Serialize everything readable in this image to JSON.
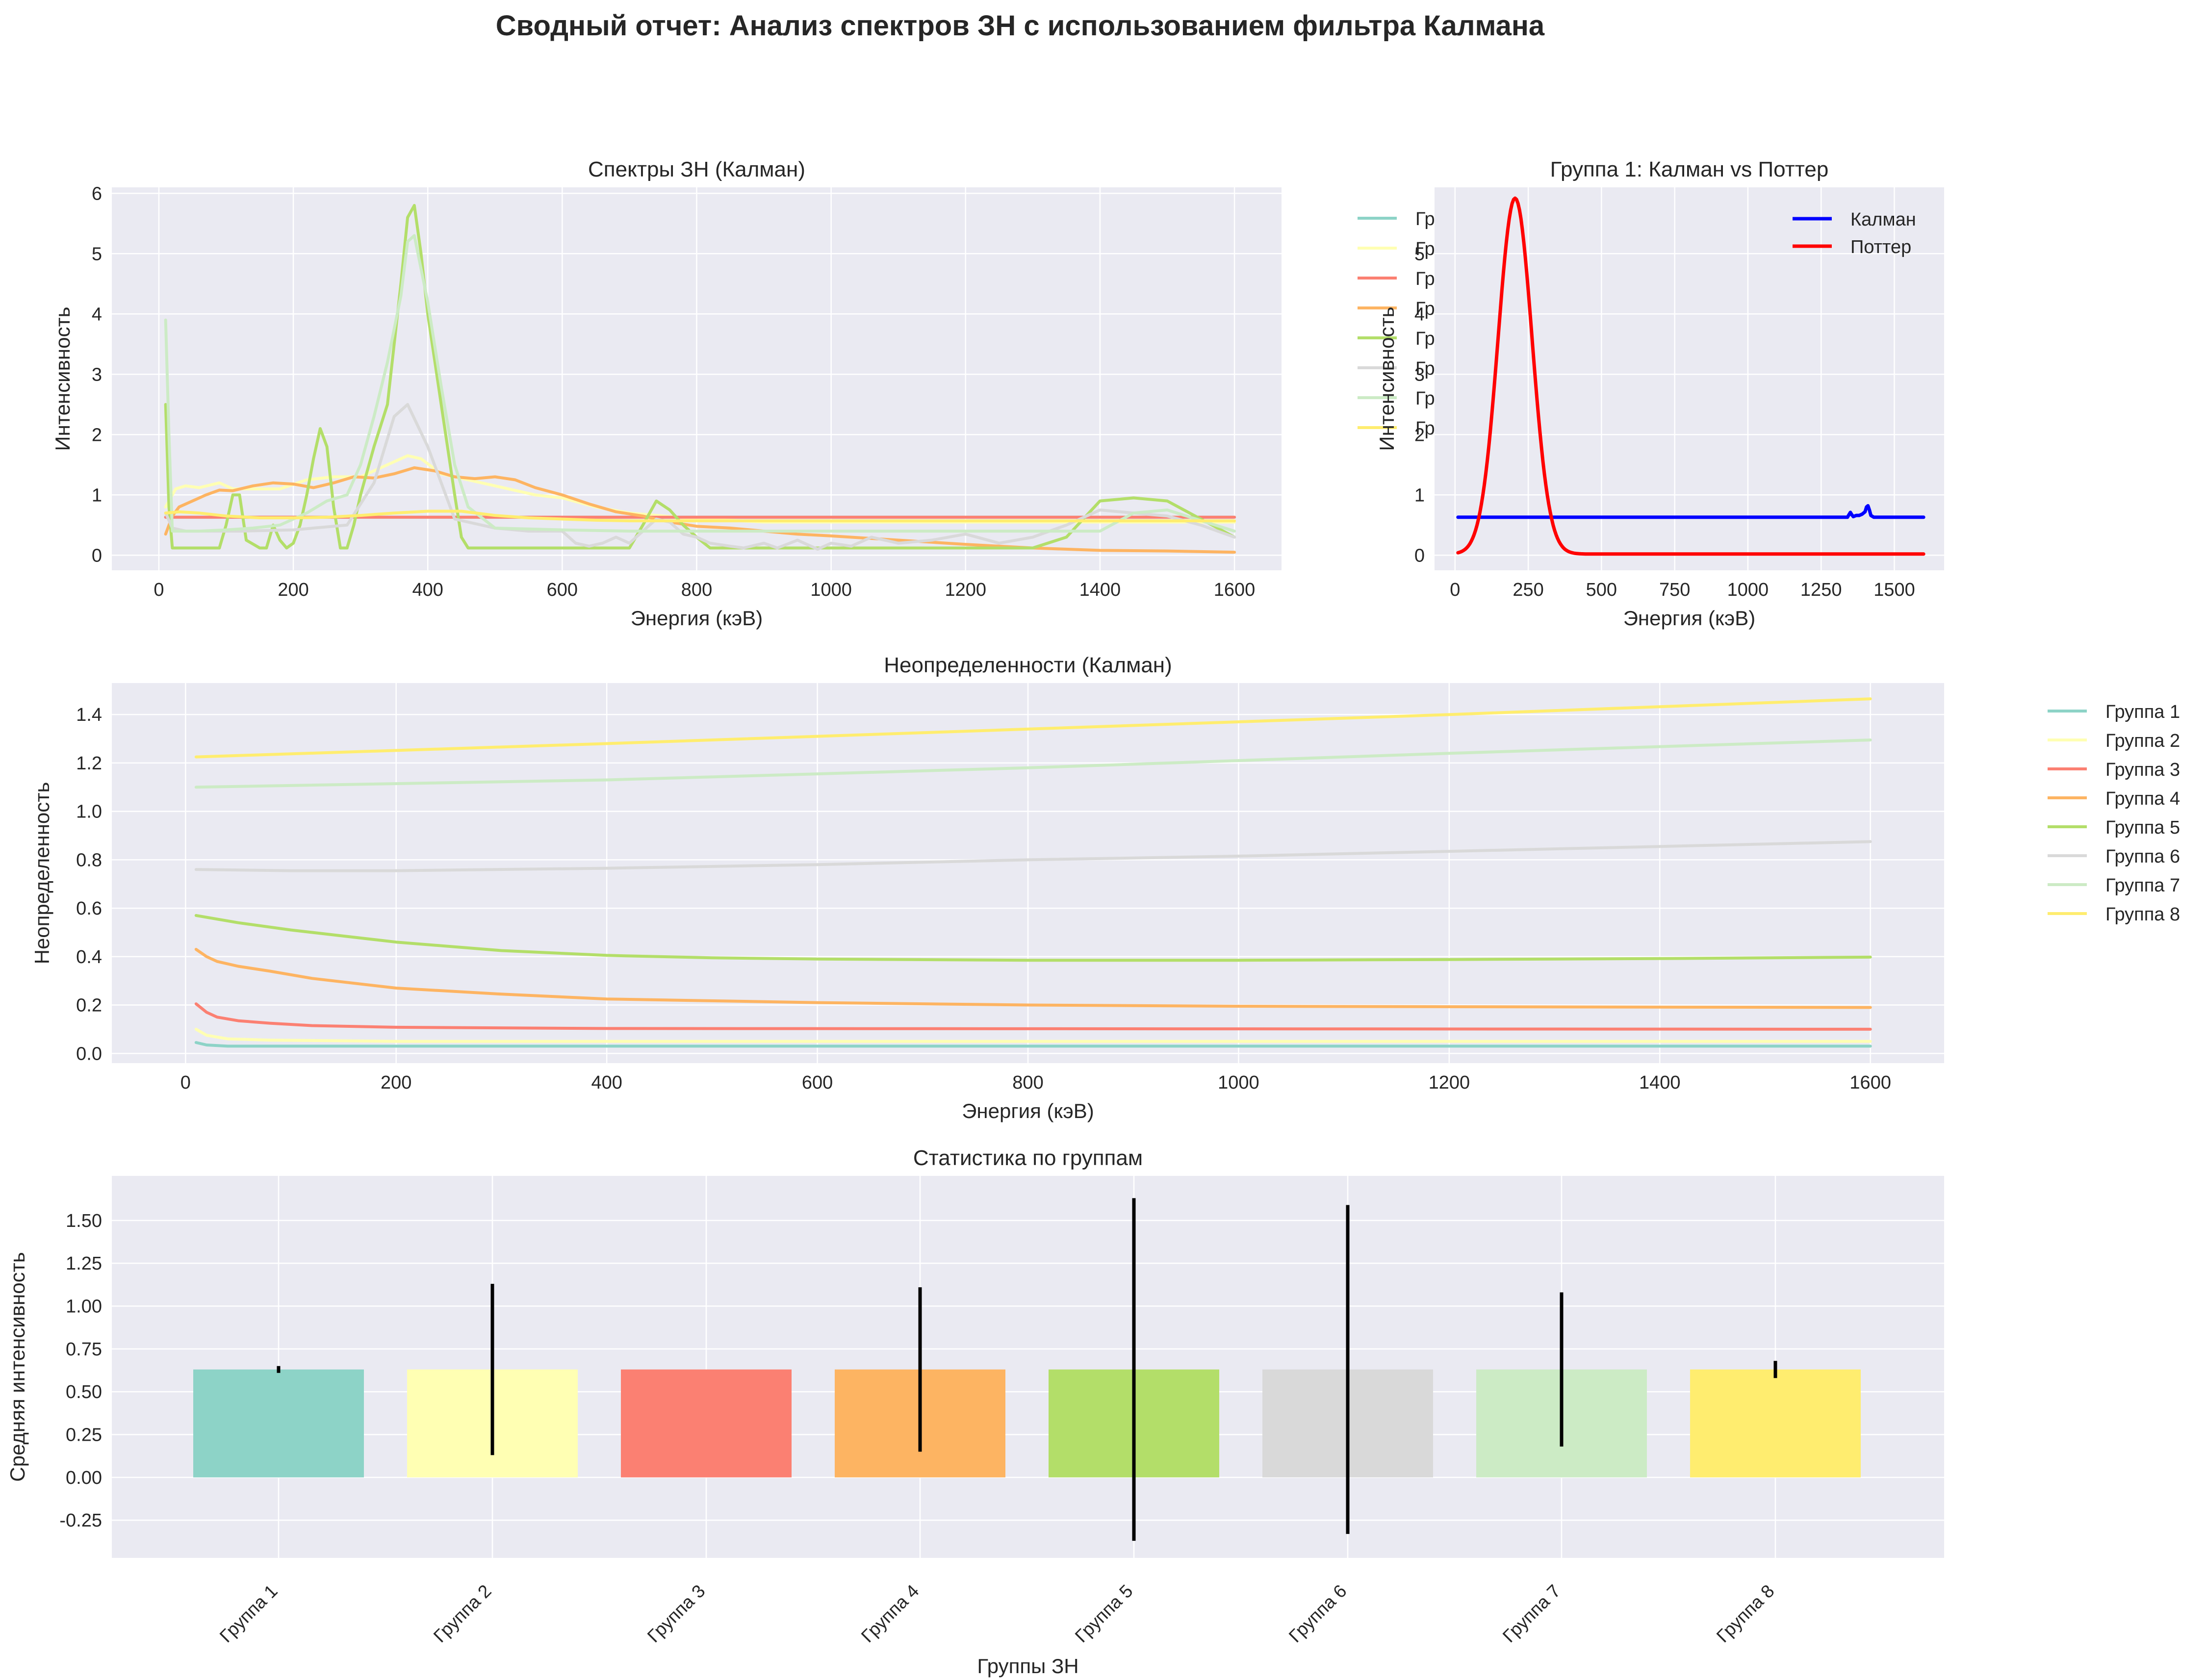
{
  "suptitle": "Сводный отчет: Анализ спектров ЗН с использованием фильтра Калмана",
  "colors": {
    "background": "#ffffff",
    "axes_bg": "#eaeaf2",
    "grid": "#ffffff",
    "text": "#262626",
    "kalman": "#0000ff",
    "potter": "#ff0000",
    "errorbar": "#000000",
    "groups": [
      "#8dd3c7",
      "#ffffb3",
      "#fb8072",
      "#fdb462",
      "#b3de69",
      "#d9d9d9",
      "#ccebc5",
      "#ffed6f"
    ]
  },
  "chart_data": [
    {
      "id": "spectra",
      "type": "line",
      "title": "Спектры ЗН (Калман)",
      "xlabel": "Энергия (кэВ)",
      "ylabel": "Интенсивность",
      "xlim": [
        -70,
        1670
      ],
      "ylim": [
        -0.25,
        6.1
      ],
      "xticks": [
        0,
        200,
        400,
        600,
        800,
        1000,
        1200,
        1400,
        1600
      ],
      "yticks": [
        0,
        1,
        2,
        3,
        4,
        5,
        6
      ],
      "grid": true,
      "legend": {
        "placement": "outside-right",
        "labels": [
          "Гр",
          "Гр",
          "Гр",
          "Гр",
          "Гр",
          "Гр",
          "Гр",
          "Гр"
        ]
      },
      "series": [
        {
          "name": "Группа 1",
          "color_index": 0,
          "x": [
            10,
            1600
          ],
          "y": [
            0.63,
            0.63
          ]
        },
        {
          "name": "Группа 2",
          "color_index": 1,
          "x": [
            10,
            25,
            40,
            60,
            90,
            110,
            140,
            180,
            220,
            260,
            300,
            340,
            370,
            390,
            420,
            460,
            500,
            560,
            600,
            650,
            700,
            750,
            800,
            850,
            900,
            950,
            1000,
            1050,
            1100,
            1200,
            1300,
            1400,
            1500,
            1600
          ],
          "y": [
            0.8,
            1.1,
            1.15,
            1.12,
            1.2,
            1.1,
            1.1,
            1.1,
            1.25,
            1.3,
            1.3,
            1.5,
            1.65,
            1.6,
            1.35,
            1.25,
            1.15,
            1.0,
            0.95,
            0.8,
            0.7,
            0.65,
            0.6,
            0.58,
            0.55,
            0.55,
            0.55,
            0.55,
            0.55,
            0.55,
            0.55,
            0.55,
            0.55,
            0.55
          ]
        },
        {
          "name": "Группа 3",
          "color_index": 2,
          "x": [
            10,
            1600
          ],
          "y": [
            0.63,
            0.63
          ]
        },
        {
          "name": "Группа 4",
          "color_index": 3,
          "x": [
            10,
            20,
            30,
            50,
            70,
            90,
            110,
            140,
            170,
            200,
            230,
            260,
            290,
            320,
            350,
            380,
            410,
            440,
            470,
            500,
            530,
            560,
            600,
            640,
            680,
            720,
            760,
            800,
            850,
            900,
            950,
            1000,
            1100,
            1200,
            1300,
            1400,
            1500,
            1600
          ],
          "y": [
            0.35,
            0.65,
            0.8,
            0.9,
            1.0,
            1.08,
            1.07,
            1.15,
            1.2,
            1.18,
            1.12,
            1.2,
            1.3,
            1.28,
            1.35,
            1.45,
            1.4,
            1.3,
            1.27,
            1.3,
            1.25,
            1.12,
            1.0,
            0.85,
            0.72,
            0.65,
            0.55,
            0.48,
            0.45,
            0.4,
            0.35,
            0.32,
            0.25,
            0.18,
            0.12,
            0.08,
            0.07,
            0.05
          ]
        },
        {
          "name": "Группа 5",
          "color_index": 4,
          "x": [
            10,
            15,
            20,
            30,
            60,
            90,
            100,
            110,
            120,
            130,
            150,
            160,
            170,
            180,
            190,
            200,
            210,
            220,
            230,
            240,
            250,
            260,
            270,
            280,
            290,
            300,
            320,
            340,
            350,
            360,
            370,
            380,
            390,
            400,
            420,
            440,
            450,
            460,
            480,
            500,
            550,
            600,
            650,
            700,
            720,
            740,
            760,
            780,
            800,
            820,
            850,
            900,
            950,
            1000,
            1050,
            1100,
            1150,
            1200,
            1250,
            1300,
            1350,
            1400,
            1450,
            1500,
            1550,
            1600
          ],
          "y": [
            2.5,
            0.8,
            0.12,
            0.12,
            0.12,
            0.12,
            0.5,
            1.0,
            1.0,
            0.25,
            0.12,
            0.12,
            0.5,
            0.25,
            0.12,
            0.2,
            0.5,
            1.0,
            1.6,
            2.1,
            1.8,
            0.8,
            0.12,
            0.12,
            0.5,
            1.0,
            1.8,
            2.5,
            3.5,
            4.5,
            5.6,
            5.8,
            5.0,
            4.0,
            2.5,
            1.0,
            0.3,
            0.12,
            0.12,
            0.12,
            0.12,
            0.12,
            0.12,
            0.12,
            0.5,
            0.9,
            0.75,
            0.5,
            0.3,
            0.12,
            0.12,
            0.12,
            0.12,
            0.12,
            0.12,
            0.12,
            0.12,
            0.12,
            0.12,
            0.12,
            0.3,
            0.9,
            0.95,
            0.9,
            0.6,
            0.3
          ]
        },
        {
          "name": "Группа 6",
          "color_index": 5,
          "x": [
            10,
            20,
            40,
            80,
            120,
            200,
            280,
            320,
            350,
            370,
            400,
            440,
            500,
            550,
            600,
            620,
            640,
            660,
            680,
            700,
            720,
            740,
            760,
            780,
            800,
            820,
            850,
            870,
            900,
            920,
            950,
            980,
            1000,
            1030,
            1060,
            1100,
            1150,
            1200,
            1250,
            1300,
            1350,
            1400,
            1450,
            1500,
            1550,
            1600
          ],
          "y": [
            0.7,
            0.45,
            0.4,
            0.4,
            0.4,
            0.42,
            0.5,
            1.2,
            2.3,
            2.5,
            1.8,
            0.6,
            0.45,
            0.4,
            0.4,
            0.2,
            0.15,
            0.2,
            0.3,
            0.2,
            0.4,
            0.6,
            0.55,
            0.35,
            0.3,
            0.2,
            0.15,
            0.12,
            0.2,
            0.12,
            0.25,
            0.1,
            0.2,
            0.15,
            0.3,
            0.2,
            0.25,
            0.35,
            0.2,
            0.3,
            0.5,
            0.75,
            0.7,
            0.65,
            0.5,
            0.3
          ]
        },
        {
          "name": "Группа 7",
          "color_index": 6,
          "x": [
            10,
            15,
            20,
            30,
            60,
            100,
            140,
            180,
            220,
            250,
            280,
            300,
            320,
            340,
            360,
            370,
            380,
            400,
            420,
            440,
            460,
            500,
            600,
            700,
            800,
            900,
            1000,
            1100,
            1200,
            1300,
            1400,
            1450,
            1500,
            1600
          ],
          "y": [
            3.9,
            2.0,
            0.4,
            0.4,
            0.4,
            0.42,
            0.45,
            0.5,
            0.7,
            0.9,
            1.0,
            1.5,
            2.3,
            3.2,
            4.3,
            5.2,
            5.3,
            4.2,
            2.8,
            1.5,
            0.8,
            0.45,
            0.42,
            0.4,
            0.4,
            0.4,
            0.4,
            0.4,
            0.4,
            0.4,
            0.4,
            0.7,
            0.75,
            0.4
          ]
        },
        {
          "name": "Группа 8",
          "color_index": 7,
          "x": [
            10,
            30,
            60,
            100,
            150,
            200,
            250,
            300,
            350,
            400,
            450,
            500,
            550,
            600,
            650,
            700,
            750,
            800,
            850,
            900,
            950,
            1000,
            1100,
            1200,
            1300,
            1400,
            1500,
            1600
          ],
          "y": [
            0.7,
            0.72,
            0.7,
            0.65,
            0.62,
            0.62,
            0.63,
            0.66,
            0.7,
            0.73,
            0.73,
            0.66,
            0.62,
            0.6,
            0.58,
            0.57,
            0.57,
            0.57,
            0.57,
            0.57,
            0.57,
            0.57,
            0.57,
            0.57,
            0.57,
            0.57,
            0.57,
            0.57
          ]
        }
      ]
    },
    {
      "id": "compare",
      "type": "line",
      "title": "Группа 1: Калман vs Поттер",
      "xlabel": "Энергия (кэВ)",
      "ylabel": "Интенсивность",
      "xlim": [
        -70,
        1670
      ],
      "ylim": [
        -0.25,
        6.1
      ],
      "xticks": [
        0,
        250,
        500,
        750,
        1000,
        1250,
        1500
      ],
      "yticks": [
        0,
        1,
        2,
        3,
        4,
        5
      ],
      "grid": true,
      "legend": {
        "placement": "top-right"
      },
      "series": [
        {
          "name": "Калман",
          "color_key": "kalman",
          "x": [
            10,
            1340,
            1345,
            1350,
            1355,
            1360,
            1370,
            1380,
            1390,
            1400,
            1405,
            1410,
            1415,
            1420,
            1430,
            1600
          ],
          "y": [
            0.63,
            0.63,
            0.67,
            0.71,
            0.67,
            0.64,
            0.66,
            0.66,
            0.68,
            0.72,
            0.8,
            0.82,
            0.75,
            0.66,
            0.63,
            0.63
          ]
        },
        {
          "name": "Поттер",
          "color_key": "potter",
          "peak": {
            "amplitude": 5.9,
            "center": 205,
            "sigma": 58,
            "baseline": 0.02,
            "start": 10,
            "end": 1600
          }
        }
      ]
    },
    {
      "id": "uncert",
      "type": "line",
      "title": "Неопределенности (Калман)",
      "xlabel": "Энергия (кэВ)",
      "ylabel": "Неопределенность",
      "xlim": [
        -70,
        1670
      ],
      "ylim": [
        -0.04,
        1.53
      ],
      "xticks": [
        0,
        200,
        400,
        600,
        800,
        1000,
        1200,
        1400,
        1600
      ],
      "yticks": [
        0.0,
        0.2,
        0.4,
        0.6,
        0.8,
        1.0,
        1.2,
        1.4
      ],
      "grid": true,
      "legend": {
        "placement": "outside-right",
        "labels": [
          "Группа 1",
          "Группа 2",
          "Группа 3",
          "Группа 4",
          "Группа 5",
          "Группа 6",
          "Группа 7",
          "Группа 8"
        ]
      },
      "series": [
        {
          "name": "Группа 1",
          "color_index": 0,
          "x": [
            10,
            20,
            40,
            80,
            200,
            1600
          ],
          "y": [
            0.045,
            0.035,
            0.03,
            0.03,
            0.03,
            0.03
          ]
        },
        {
          "name": "Группа 2",
          "color_index": 1,
          "x": [
            10,
            20,
            40,
            80,
            200,
            1600
          ],
          "y": [
            0.1,
            0.075,
            0.06,
            0.055,
            0.05,
            0.05
          ]
        },
        {
          "name": "Группа 3",
          "color_index": 2,
          "x": [
            10,
            20,
            30,
            50,
            80,
            120,
            200,
            400,
            1600
          ],
          "y": [
            0.205,
            0.17,
            0.15,
            0.135,
            0.125,
            0.115,
            0.108,
            0.103,
            0.1
          ]
        },
        {
          "name": "Группа 4",
          "color_index": 3,
          "x": [
            10,
            20,
            30,
            50,
            80,
            120,
            200,
            300,
            400,
            600,
            800,
            1000,
            1200,
            1600
          ],
          "y": [
            0.43,
            0.4,
            0.38,
            0.36,
            0.34,
            0.31,
            0.27,
            0.245,
            0.225,
            0.21,
            0.2,
            0.195,
            0.193,
            0.19
          ]
        },
        {
          "name": "Группа 5",
          "color_index": 4,
          "x": [
            10,
            50,
            100,
            200,
            300,
            400,
            500,
            600,
            800,
            1000,
            1200,
            1400,
            1600
          ],
          "y": [
            0.57,
            0.54,
            0.51,
            0.46,
            0.425,
            0.405,
            0.395,
            0.39,
            0.385,
            0.385,
            0.388,
            0.392,
            0.398
          ]
        },
        {
          "name": "Группа 6",
          "color_index": 5,
          "x": [
            10,
            100,
            200,
            400,
            600,
            800,
            1000,
            1200,
            1400,
            1600
          ],
          "y": [
            0.76,
            0.755,
            0.755,
            0.765,
            0.78,
            0.8,
            0.815,
            0.835,
            0.855,
            0.875
          ]
        },
        {
          "name": "Группа 7",
          "color_index": 6,
          "x": [
            10,
            400,
            800,
            1200,
            1600
          ],
          "y": [
            1.1,
            1.13,
            1.18,
            1.24,
            1.295
          ]
        },
        {
          "name": "Группа 8",
          "color_index": 7,
          "x": [
            10,
            400,
            800,
            1200,
            1600
          ],
          "y": [
            1.225,
            1.28,
            1.34,
            1.4,
            1.465
          ]
        }
      ]
    },
    {
      "id": "stats",
      "type": "bar",
      "title": "Статистика по группам",
      "xlabel": "Группы ЗН",
      "ylabel": "Средняя интенсивность",
      "ylim": [
        -0.47,
        1.76
      ],
      "yticks": [
        -0.25,
        0.0,
        0.25,
        0.5,
        0.75,
        1.0,
        1.25,
        1.5
      ],
      "grid": true,
      "categories": [
        "Группа 1",
        "Группа 2",
        "Группа 3",
        "Группа 4",
        "Группа 5",
        "Группа 6",
        "Группа 7",
        "Группа 8"
      ],
      "values": [
        0.63,
        0.63,
        0.63,
        0.63,
        0.63,
        0.63,
        0.63,
        0.63
      ],
      "errors": [
        0.02,
        0.5,
        0.0,
        0.48,
        1.0,
        0.96,
        0.45,
        0.05
      ]
    }
  ]
}
